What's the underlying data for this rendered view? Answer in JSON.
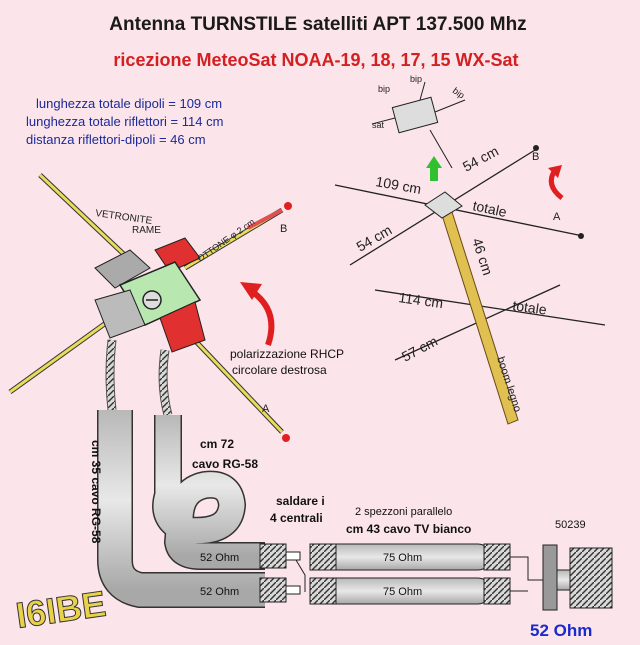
{
  "title": "Antenna TURNSTILE  satelliti APT  137.500 Mhz",
  "subtitle": "ricezione MeteoSat  NOAA-19, 18, 17, 15 WX-Sat",
  "specs": [
    "lunghezza totale dipoli = 109 cm",
    "lunghezza totale riflettori = 114 cm",
    "distanza riflettori-dipoli = 46 cm"
  ],
  "labels": {
    "vetronite": "VETRONITE",
    "rame": "RAME",
    "ottone": "OTTONE φ 2 cm",
    "b_left": "B",
    "a_left": "A",
    "b_right": "B",
    "a_right": "A",
    "bip1": "bip",
    "bip2": "bip",
    "bip3": "bip",
    "sat": "sat",
    "d54a": "54 cm",
    "d109": "109 cm",
    "totale1": "totale",
    "d54b": "54 cm",
    "d46": "46 cm",
    "d114": "114 cm",
    "totale2": "totale",
    "d57": "57 cm",
    "boom": "boom legno",
    "polar1": "polarizzazione RHCP",
    "polar2": "circolare destrosa",
    "cm72": "cm 72",
    "rg58a": "cavo RG-58",
    "cm35": "cm 35 cavo RG-58",
    "saldare1": "saldare i",
    "saldare2": "4 centrali",
    "spezzoni1": "2 spezzoni parallelo",
    "spezzoni2": "cm 43 cavo TV bianco",
    "ohm52a": "52 Ohm",
    "ohm52b": "52 Ohm",
    "ohm75a": "75 Ohm",
    "ohm75b": "75 Ohm",
    "code": "50239",
    "callsign": "I6IBE",
    "output": "52 Ohm"
  },
  "colors": {
    "title": "#1a1a1a",
    "subtitle": "#d42020",
    "spec": "#1a2a9a",
    "arrow": "#e02020",
    "output": "#1a2acc",
    "callsign": "#e8d24a"
  }
}
